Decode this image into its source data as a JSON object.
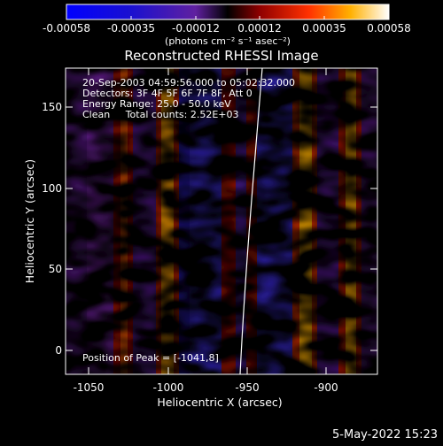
{
  "colorbar": {
    "tick_labels": [
      "-0.00058",
      "-0.00035",
      "-0.00012",
      "0.00012",
      "0.00035",
      "0.00058"
    ],
    "unit_label": "(photons cm⁻² s⁻¹ asec⁻²)"
  },
  "title": "Reconstructed RHESSI Image",
  "overlay": {
    "line1": "20-Sep-2003 04:59:56.000 to 05:02:32.000",
    "line2": "Detectors: 3F 4F 5F 6F 7F 8F, Att 0",
    "line3": "Energy Range: 25.0 - 50.0 keV",
    "line4": "Clean     Total counts: 2.52E+03",
    "peak": "Position of Peak = [-1041,8]"
  },
  "axes": {
    "xlabel": "Heliocentric X (arcsec)",
    "ylabel": "Heliocentric Y (arcsec)",
    "xlim": [
      -1063,
      -865
    ],
    "ylim": [
      -15,
      172
    ],
    "xticks": [
      "-1050",
      "-1000",
      "-950",
      "-900"
    ],
    "yticks": [
      "0",
      "50",
      "100",
      "150"
    ]
  },
  "footer": {
    "date": "5-May-2022 15:23"
  }
}
